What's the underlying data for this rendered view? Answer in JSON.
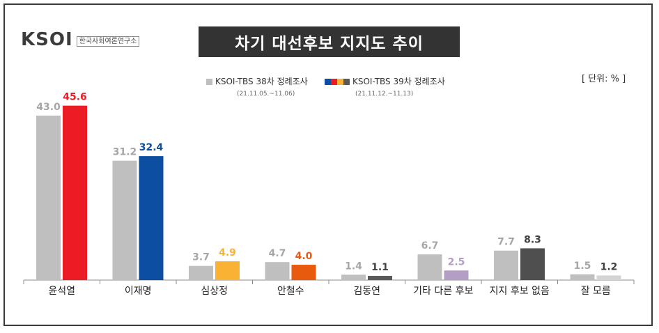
{
  "header": {
    "logo_text": "KSOI",
    "logo_sub": "한국사회여론연구소",
    "title": "차기 대선후보 지지도 추이",
    "unit": "[ 단위: % ]"
  },
  "legend": [
    {
      "label": "KSOI-TBS 38차 정례조사",
      "date": "(21.11.05.~11.06)"
    },
    {
      "label": "KSOI-TBS 39차 정례조사",
      "date": "(21.11.12.~11.13)"
    }
  ],
  "colors": {
    "prev": "#bfbfbf",
    "current": [
      "#ec1c24",
      "#0b4ea2",
      "#f9b233",
      "#e85a0e",
      "#595959",
      "#b49ec4",
      "#4f4f4f",
      "#d0d0d0"
    ]
  },
  "chart_data": {
    "type": "bar",
    "categories": [
      "윤석열",
      "이재명",
      "심상정",
      "안철수",
      "김동연",
      "기타 다른 후보",
      "지지 후보 없음",
      "잘 모름"
    ],
    "series": [
      {
        "name": "KSOI-TBS 38차 정례조사",
        "values": [
          43.0,
          31.2,
          3.7,
          4.7,
          1.4,
          6.7,
          7.7,
          1.5
        ]
      },
      {
        "name": "KSOI-TBS 39차 정례조사",
        "values": [
          45.6,
          32.4,
          4.9,
          4.0,
          1.1,
          2.5,
          8.3,
          1.2
        ]
      }
    ],
    "labels_prev": [
      "43.0",
      "31.2",
      "3.7",
      "4.7",
      "1.4",
      "6.7",
      "7.7",
      "1.5"
    ],
    "labels_current": [
      "45.6",
      "32.4",
      "4.9",
      "4.0",
      "1.1",
      "2.5",
      "8.3",
      "1.2"
    ],
    "title": "차기 대선후보 지지도 추이",
    "ylim": [
      0,
      50
    ],
    "grid": false,
    "legend_position": "top-center"
  }
}
